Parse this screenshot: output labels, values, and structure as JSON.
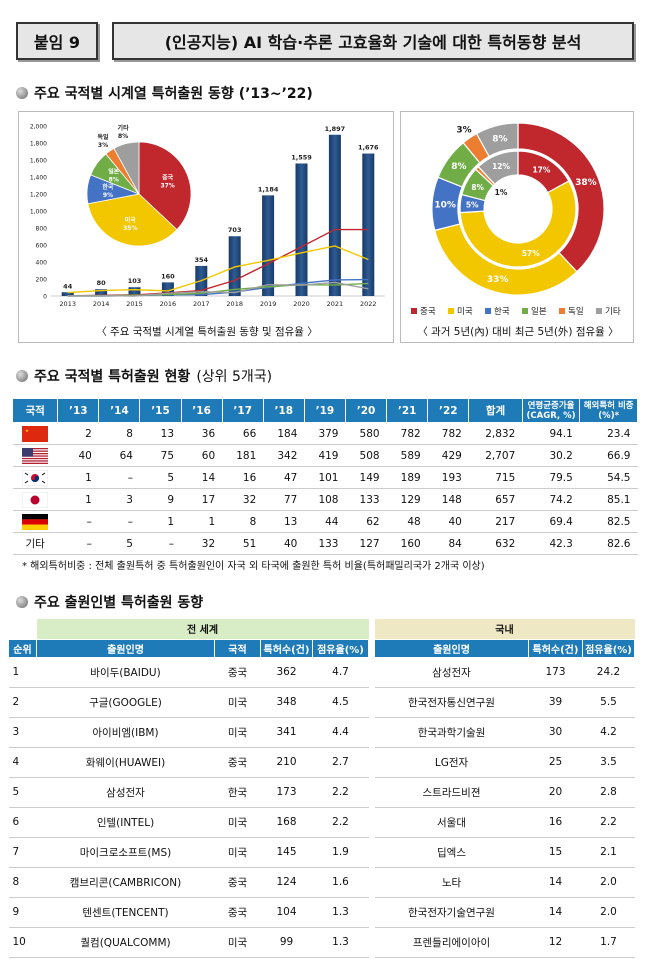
{
  "header": {
    "tag": "붙임 9",
    "title": "(인공지능) AI 학습·추론 고효율화 기술에 대한 특허동향 분석"
  },
  "section1": {
    "title": "주요 국적별 시계열 특허출원 동향 (’13~’22)"
  },
  "chart_data": [
    {
      "type": "bar",
      "categories": [
        "2013",
        "2014",
        "2015",
        "2016",
        "2017",
        "2018",
        "2019",
        "2020",
        "2021",
        "2022"
      ],
      "values": [
        44,
        80,
        103,
        160,
        354,
        703,
        1184,
        1559,
        1897,
        1676
      ],
      "ylim": [
        0,
        2000
      ],
      "yticks": [
        "0",
        "200",
        "400",
        "600",
        "800",
        "1,000",
        "1,200",
        "1,400",
        "1,600",
        "1,800",
        "2,000"
      ],
      "value_labels": [
        "44",
        "80",
        "103",
        "160",
        "354",
        "703",
        "1,184",
        "1,559",
        "1,897",
        "1,676"
      ],
      "series": [
        {
          "name": "중국",
          "color": "#c0282e",
          "values": [
            2,
            8,
            13,
            36,
            66,
            184,
            379,
            580,
            782,
            782
          ]
        },
        {
          "name": "미국",
          "color": "#f2c700",
          "values": [
            40,
            64,
            75,
            60,
            181,
            342,
            419,
            508,
            589,
            429
          ]
        },
        {
          "name": "한국",
          "color": "#4472c4",
          "values": [
            1,
            0,
            5,
            14,
            16,
            47,
            101,
            149,
            189,
            193
          ]
        },
        {
          "name": "일본",
          "color": "#70ad47",
          "values": [
            1,
            3,
            9,
            17,
            32,
            77,
            108,
            133,
            129,
            148
          ]
        },
        {
          "name": "기타",
          "color": "#9e9e9e",
          "values": [
            0,
            5,
            0,
            32,
            51,
            40,
            133,
            127,
            160,
            84
          ]
        }
      ],
      "caption": "〈 주요 국적별 시계열 특허출원 동향 및 점유율 〉"
    },
    {
      "type": "pie",
      "labels": [
        "중국",
        "미국",
        "한국",
        "일본",
        "독일",
        "기타"
      ],
      "values": [
        37,
        35,
        9,
        8,
        3,
        8
      ],
      "display": [
        "중국\n37%",
        "미국\n35%",
        "한국\n9%",
        "일본\n8%",
        "독일\n3%",
        "기타\n8%"
      ]
    },
    {
      "type": "pie",
      "inner": {
        "labels": [
          "중국",
          "미국",
          "한국",
          "일본",
          "독일",
          "기타"
        ],
        "values": [
          17,
          57,
          5,
          8,
          1,
          12
        ]
      },
      "outer": {
        "labels": [
          "중국",
          "미국",
          "한국",
          "일본",
          "독일",
          "기타"
        ],
        "values": [
          38,
          33,
          10,
          8,
          3,
          8
        ]
      },
      "legend": [
        "중국",
        "미국",
        "한국",
        "일본",
        "독일",
        "기타"
      ],
      "caption": "〈 과거 5년(內) 대비 최근 5년(外) 점유율 〉"
    }
  ],
  "colors": {
    "china": "#c0282e",
    "us": "#f2c700",
    "korea": "#4472c4",
    "japan": "#70ad47",
    "germany": "#ed7d31",
    "other": "#9e9e9e",
    "header_blue": "#1f7ab8"
  },
  "section2": {
    "title": "주요 국적별 특허출원 현황",
    "subtitle": "(상위 5개국)",
    "headers": [
      "국적",
      "’13",
      "’14",
      "’15",
      "’16",
      "’17",
      "’18",
      "’19",
      "’20",
      "’21",
      "’22",
      "합계",
      "연평균증가율 (CAGR, %)",
      "해외특허 비중(%)*"
    ],
    "rows": [
      {
        "flag": "china-flag",
        "label": "",
        "cells": [
          "2",
          "8",
          "13",
          "36",
          "66",
          "184",
          "379",
          "580",
          "782",
          "782",
          "2,832",
          "94.1",
          "23.4"
        ]
      },
      {
        "flag": "us-flag",
        "label": "",
        "cells": [
          "40",
          "64",
          "75",
          "60",
          "181",
          "342",
          "419",
          "508",
          "589",
          "429",
          "2,707",
          "30.2",
          "66.9"
        ]
      },
      {
        "flag": "korea-flag",
        "label": "",
        "cells": [
          "1",
          "–",
          "5",
          "14",
          "16",
          "47",
          "101",
          "149",
          "189",
          "193",
          "715",
          "79.5",
          "54.5"
        ]
      },
      {
        "flag": "japan-flag",
        "label": "",
        "cells": [
          "1",
          "3",
          "9",
          "17",
          "32",
          "77",
          "108",
          "133",
          "129",
          "148",
          "657",
          "74.2",
          "85.1"
        ]
      },
      {
        "flag": "germany-flag",
        "label": "",
        "cells": [
          "–",
          "–",
          "1",
          "1",
          "8",
          "13",
          "44",
          "62",
          "48",
          "40",
          "217",
          "69.4",
          "82.5"
        ]
      },
      {
        "flag": "",
        "label": "기타",
        "cells": [
          "–",
          "5",
          "–",
          "32",
          "51",
          "40",
          "133",
          "127",
          "160",
          "84",
          "632",
          "42.3",
          "82.6"
        ]
      }
    ],
    "note": "* 해외특허비중 : 전체 출원특허 중 특허출원인이 자국 외 타국에 출원한 특허 비율(특허패밀리국가 2개국 이상)"
  },
  "section3": {
    "title": "주요 출원인별 특허출원 동향",
    "group_world": "전 세계",
    "group_domestic": "국내",
    "headers": [
      "순위",
      "출원인명",
      "국적",
      "특허수(건)",
      "점유율(%)",
      "출원인명",
      "특허수(건)",
      "점유율(%)"
    ],
    "rows": [
      {
        "rank": "1",
        "w_name": "바이두(BAIDU)",
        "w_country": "중국",
        "w_count": "362",
        "w_share": "4.7",
        "d_name": "삼성전자",
        "d_count": "173",
        "d_share": "24.2"
      },
      {
        "rank": "2",
        "w_name": "구글(GOOGLE)",
        "w_country": "미국",
        "w_count": "348",
        "w_share": "4.5",
        "d_name": "한국전자통신연구원",
        "d_count": "39",
        "d_share": "5.5"
      },
      {
        "rank": "3",
        "w_name": "아이비엠(IBM)",
        "w_country": "미국",
        "w_count": "341",
        "w_share": "4.4",
        "d_name": "한국과학기술원",
        "d_count": "30",
        "d_share": "4.2"
      },
      {
        "rank": "4",
        "w_name": "화웨이(HUAWEI)",
        "w_country": "중국",
        "w_count": "210",
        "w_share": "2.7",
        "d_name": "LG전자",
        "d_count": "25",
        "d_share": "3.5"
      },
      {
        "rank": "5",
        "w_name": "삼성전자",
        "w_country": "한국",
        "w_count": "173",
        "w_share": "2.2",
        "d_name": "스트라드비젼",
        "d_count": "20",
        "d_share": "2.8"
      },
      {
        "rank": "6",
        "w_name": "인텔(INTEL)",
        "w_country": "미국",
        "w_count": "168",
        "w_share": "2.2",
        "d_name": "서울대",
        "d_count": "16",
        "d_share": "2.2"
      },
      {
        "rank": "7",
        "w_name": "마이크로소프트(MS)",
        "w_country": "미국",
        "w_count": "145",
        "w_share": "1.9",
        "d_name": "딥엑스",
        "d_count": "15",
        "d_share": "2.1"
      },
      {
        "rank": "8",
        "w_name": "캠브리콘(CAMBRICON)",
        "w_country": "중국",
        "w_count": "124",
        "w_share": "1.6",
        "d_name": "노타",
        "d_count": "14",
        "d_share": "2.0"
      },
      {
        "rank": "9",
        "w_name": "텐센트(TENCENT)",
        "w_country": "중국",
        "w_count": "104",
        "w_share": "1.3",
        "d_name": "한국전자기술연구원",
        "d_count": "14",
        "d_share": "2.0"
      },
      {
        "rank": "10",
        "w_name": "퀄컴(QUALCOMM)",
        "w_country": "미국",
        "w_count": "99",
        "w_share": "1.3",
        "d_name": "프렌들리에이아이",
        "d_count": "12",
        "d_share": "1.7"
      }
    ]
  }
}
